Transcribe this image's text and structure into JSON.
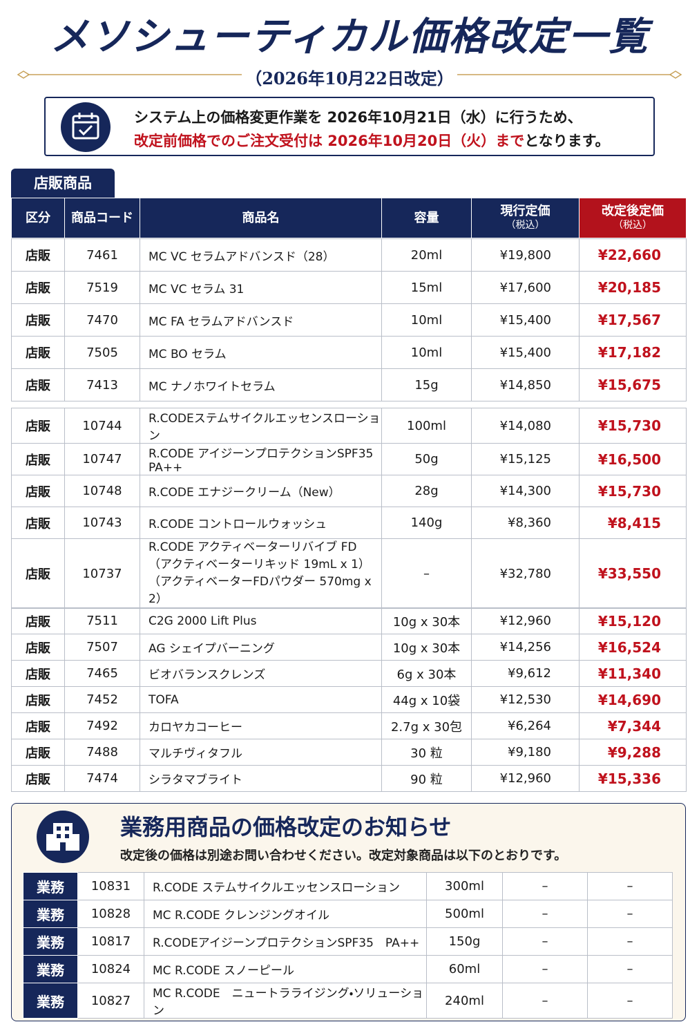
{
  "header": {
    "title": "メソシューティカル価格改定一覧",
    "subtitle": "（2026年10月22日改定）"
  },
  "notice": {
    "line1": "システム上の価格変更作業を 2026年10月21日（水）に行うため、",
    "line2_emphasis": "改定前価格でのご注文受付は 2026年10月20日（火）まで",
    "line2_rest": "となります。"
  },
  "store": {
    "tab": "店販商品",
    "headers": [
      "区分",
      "商品コード",
      "商品名",
      "容量",
      "現行定価",
      "改定後定価"
    ],
    "tax_note": "（税込）",
    "groups": [
      [
        [
          "店販",
          "7461",
          "MC VC セラムアドバンスド（28）",
          "20ml",
          "¥19,800",
          "¥22,660"
        ],
        [
          "店販",
          "7519",
          "MC VC セラム 31",
          "15ml",
          "¥17,600",
          "¥20,185"
        ],
        [
          "店販",
          "7470",
          "MC FA セラムアドバンスド",
          "10ml",
          "¥15,400",
          "¥17,567"
        ],
        [
          "店販",
          "7505",
          "MC BO セラム",
          "10ml",
          "¥15,400",
          "¥17,182"
        ],
        [
          "店販",
          "7413",
          "MC ナノホワイトセラム",
          "15g",
          "¥14,850",
          "¥15,675"
        ]
      ],
      [
        [
          "店販",
          "10744",
          "R.CODEステムサイクルエッセンスローション",
          "100ml",
          "¥14,080",
          "¥15,730"
        ],
        [
          "店販",
          "10747",
          "R.CODE アイジーンプロテクションSPF35　PA++",
          "50g",
          "¥15,125",
          "¥16,500"
        ],
        [
          "店販",
          "10748",
          "R.CODE エナジークリーム（New）",
          "28g",
          "¥14,300",
          "¥15,730"
        ],
        [
          "店販",
          "10743",
          "R.CODE コントロールウォッシュ",
          "140g",
          "¥8,360",
          "¥8,415"
        ],
        [
          "店販",
          "10737",
          "R.CODE アクティベーターリバイブ FD\n（アクティベーターリキッド 19mL x 1）\n（アクティベーターFDパウダー 570mg x 2）",
          "–",
          "¥32,780",
          "¥33,550"
        ]
      ],
      [
        [
          "店販",
          "7511",
          "C2G 2000 Lift Plus",
          "10g x 30本",
          "¥12,960",
          "¥15,120"
        ],
        [
          "店販",
          "7507",
          "AG シェイプバーニング",
          "10g x 30本",
          "¥14,256",
          "¥16,524"
        ],
        [
          "店販",
          "7465",
          "ビオバランスクレンズ",
          "6g x 30本",
          "¥9,612",
          "¥11,340"
        ],
        [
          "店販",
          "7452",
          "TOFA",
          "44g x 10袋",
          "¥12,530",
          "¥14,690"
        ],
        [
          "店販",
          "7492",
          "カロヤカコーヒー",
          "2.7g x 30包",
          "¥6,264",
          "¥7,344"
        ],
        [
          "店販",
          "7488",
          "マルチヴィタフル",
          "30 粒",
          "¥9,180",
          "¥9,288"
        ],
        [
          "店販",
          "7474",
          "シラタマブライト",
          "90 粒",
          "¥12,960",
          "¥15,336"
        ]
      ]
    ]
  },
  "business": {
    "title": "業務用商品の価格改定のお知らせ",
    "note": "改定後の価格は別途お問い合わせください。改定対象商品は以下のとおりです。",
    "rows": [
      [
        "業務",
        "10831",
        "R.CODE ステムサイクルエッセンスローション",
        "300ml",
        "–",
        "–"
      ],
      [
        "業務",
        "10828",
        "MC R.CODE クレンジングオイル",
        "500ml",
        "–",
        "–"
      ],
      [
        "業務",
        "10817",
        "R.CODEアイジーンプロテクションSPF35　PA++",
        "150g",
        "–",
        "–"
      ],
      [
        "業務",
        "10824",
        "MC R.CODE スノーピール",
        "60ml",
        "–",
        "–"
      ],
      [
        "業務",
        "10827",
        "MC R.CODE　ニュートラライジング・ソリューション",
        "240ml",
        "–",
        "–"
      ]
    ]
  }
}
